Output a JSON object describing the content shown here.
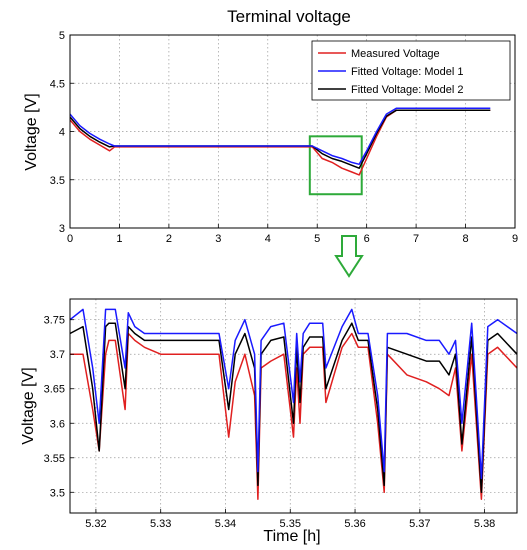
{
  "chart_data": [
    {
      "type": "line",
      "title": "Terminal voltage",
      "xlabel": "",
      "ylabel": "Voltage [V]",
      "xlim": [
        0,
        9
      ],
      "ylim": [
        3,
        5
      ],
      "xticks": [
        "0",
        "1",
        "2",
        "3",
        "4",
        "5",
        "6",
        "7",
        "8",
        "9"
      ],
      "yticks": [
        "3",
        "3.5",
        "4",
        "4.5",
        "5"
      ],
      "grid": true,
      "legend_position": "top-right",
      "series": [
        {
          "name": "Measured Voltage",
          "color": "#e02020",
          "x": [
            0,
            0.2,
            0.4,
            0.6,
            0.8,
            0.9,
            2,
            3,
            4,
            4.9,
            5.1,
            5.3,
            5.5,
            5.7,
            5.85,
            6.0,
            6.2,
            6.4,
            6.6,
            7,
            7.5,
            8,
            8.5
          ],
          "y": [
            4.12,
            4.0,
            3.92,
            3.86,
            3.8,
            3.84,
            3.84,
            3.84,
            3.84,
            3.84,
            3.72,
            3.68,
            3.62,
            3.58,
            3.55,
            3.72,
            3.95,
            4.15,
            4.22,
            4.22,
            4.22,
            4.22,
            4.22
          ]
        },
        {
          "name": "Fitted Voltage: Model 1",
          "color": "#1a1aff",
          "x": [
            0,
            0.2,
            0.4,
            0.6,
            0.8,
            0.9,
            2,
            3,
            4,
            4.9,
            5.1,
            5.3,
            5.5,
            5.7,
            5.85,
            6.0,
            6.2,
            6.4,
            6.6,
            7,
            7.5,
            8,
            8.5
          ],
          "y": [
            4.18,
            4.06,
            3.98,
            3.92,
            3.87,
            3.85,
            3.85,
            3.85,
            3.85,
            3.85,
            3.8,
            3.75,
            3.72,
            3.68,
            3.66,
            3.8,
            4.0,
            4.18,
            4.24,
            4.24,
            4.24,
            4.24,
            4.24
          ]
        },
        {
          "name": "Fitted Voltage: Model 2",
          "color": "#000000",
          "x": [
            0,
            0.2,
            0.4,
            0.6,
            0.8,
            0.9,
            2,
            3,
            4,
            4.9,
            5.1,
            5.3,
            5.5,
            5.7,
            5.85,
            6.0,
            6.2,
            6.4,
            6.6,
            7,
            7.5,
            8,
            8.5
          ],
          "y": [
            4.15,
            4.03,
            3.95,
            3.89,
            3.84,
            3.85,
            3.85,
            3.85,
            3.85,
            3.85,
            3.77,
            3.72,
            3.69,
            3.65,
            3.62,
            3.77,
            3.98,
            4.16,
            4.22,
            4.22,
            4.22,
            4.22,
            4.22
          ]
        }
      ],
      "highlight_box": {
        "x": [
          4.85,
          5.9
        ],
        "y": [
          3.35,
          3.95
        ],
        "color": "#2eaa3a"
      }
    },
    {
      "type": "line",
      "title": "",
      "xlabel": "Time [h]",
      "ylabel": "Voltage [V]",
      "xlim": [
        5.316,
        5.385
      ],
      "ylim": [
        3.47,
        3.78
      ],
      "xticks": [
        "5.32",
        "5.33",
        "5.34",
        "5.35",
        "5.36",
        "5.37",
        "5.38"
      ],
      "yticks": [
        "3.5",
        "3.55",
        "3.6",
        "3.65",
        "3.7",
        "3.75"
      ],
      "grid": true,
      "series": [
        {
          "name": "Measured Voltage",
          "color": "#e02020",
          "x": [
            5.316,
            5.318,
            5.3195,
            5.3205,
            5.3215,
            5.322,
            5.323,
            5.3245,
            5.325,
            5.326,
            5.3275,
            5.33,
            5.335,
            5.339,
            5.3405,
            5.3415,
            5.343,
            5.3445,
            5.345,
            5.3455,
            5.347,
            5.349,
            5.3505,
            5.351,
            5.3515,
            5.352,
            5.353,
            5.355,
            5.3555,
            5.358,
            5.3595,
            5.3605,
            5.362,
            5.3635,
            5.3645,
            5.365,
            5.368,
            5.371,
            5.373,
            5.3745,
            5.3755,
            5.3765,
            5.378,
            5.3795,
            5.3805,
            5.382,
            5.385
          ],
          "y": [
            3.7,
            3.7,
            3.62,
            3.56,
            3.7,
            3.72,
            3.72,
            3.62,
            3.73,
            3.72,
            3.71,
            3.7,
            3.7,
            3.7,
            3.58,
            3.66,
            3.7,
            3.64,
            3.49,
            3.68,
            3.69,
            3.7,
            3.58,
            3.68,
            3.6,
            3.7,
            3.71,
            3.71,
            3.63,
            3.71,
            3.73,
            3.71,
            3.71,
            3.6,
            3.5,
            3.7,
            3.67,
            3.66,
            3.65,
            3.64,
            3.68,
            3.56,
            3.7,
            3.49,
            3.7,
            3.71,
            3.68
          ]
        },
        {
          "name": "Fitted Voltage: Model 1",
          "color": "#1a1aff",
          "x": [
            5.316,
            5.318,
            5.3195,
            5.3205,
            5.3215,
            5.322,
            5.323,
            5.3245,
            5.325,
            5.326,
            5.3275,
            5.33,
            5.335,
            5.339,
            5.3405,
            5.3415,
            5.343,
            5.3445,
            5.345,
            5.3455,
            5.347,
            5.349,
            5.3505,
            5.351,
            5.3515,
            5.352,
            5.353,
            5.355,
            5.3555,
            5.358,
            5.3595,
            5.3605,
            5.362,
            5.3635,
            5.3645,
            5.365,
            5.368,
            5.371,
            5.373,
            5.3745,
            5.3755,
            5.3765,
            5.378,
            5.3795,
            5.3805,
            5.382,
            5.385
          ],
          "y": [
            3.75,
            3.765,
            3.68,
            3.6,
            3.765,
            3.765,
            3.765,
            3.68,
            3.76,
            3.74,
            3.73,
            3.73,
            3.73,
            3.73,
            3.65,
            3.72,
            3.75,
            3.7,
            3.53,
            3.72,
            3.74,
            3.745,
            3.63,
            3.73,
            3.66,
            3.73,
            3.745,
            3.745,
            3.68,
            3.74,
            3.765,
            3.73,
            3.73,
            3.64,
            3.53,
            3.73,
            3.73,
            3.72,
            3.72,
            3.7,
            3.72,
            3.6,
            3.745,
            3.52,
            3.74,
            3.75,
            3.73
          ]
        },
        {
          "name": "Fitted Voltage: Model 2",
          "color": "#000000",
          "x": [
            5.316,
            5.318,
            5.3195,
            5.3205,
            5.3215,
            5.322,
            5.323,
            5.3245,
            5.325,
            5.326,
            5.3275,
            5.33,
            5.335,
            5.339,
            5.3405,
            5.3415,
            5.343,
            5.3445,
            5.345,
            5.3455,
            5.347,
            5.349,
            5.3505,
            5.351,
            5.3515,
            5.352,
            5.353,
            5.355,
            5.3555,
            5.358,
            5.3595,
            5.3605,
            5.362,
            5.3635,
            5.3645,
            5.365,
            5.368,
            5.371,
            5.373,
            5.3745,
            5.3755,
            5.3765,
            5.378,
            5.3795,
            5.3805,
            5.382,
            5.385
          ],
          "y": [
            3.73,
            3.74,
            3.65,
            3.56,
            3.74,
            3.745,
            3.745,
            3.65,
            3.74,
            3.73,
            3.72,
            3.72,
            3.72,
            3.72,
            3.62,
            3.7,
            3.73,
            3.68,
            3.51,
            3.7,
            3.72,
            3.725,
            3.6,
            3.71,
            3.63,
            3.71,
            3.725,
            3.725,
            3.65,
            3.72,
            3.745,
            3.72,
            3.72,
            3.62,
            3.51,
            3.71,
            3.7,
            3.69,
            3.69,
            3.67,
            3.7,
            3.57,
            3.725,
            3.5,
            3.72,
            3.73,
            3.7
          ]
        }
      ]
    }
  ],
  "arrow": {
    "color": "#2eaa3a"
  }
}
